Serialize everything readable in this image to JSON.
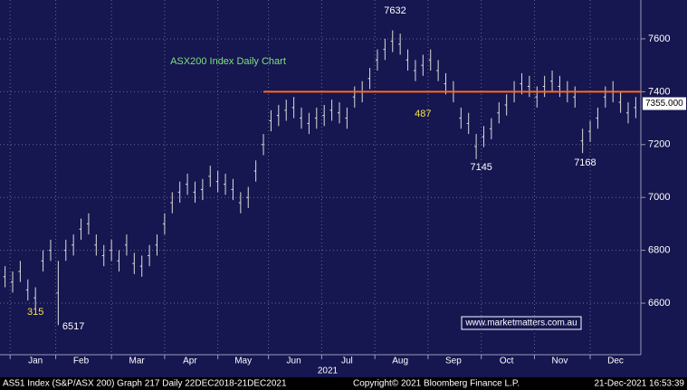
{
  "chart_data": {
    "type": "range",
    "title": "ASX200 Index Daily Chart",
    "website": "www.marketmatters.com.au",
    "year_label": "2021",
    "footer": {
      "left": "AS51 Index (S&P/ASX 200) Graph 217  Daily 22DEC2018-21DEC2021",
      "center": "Copyright© 2021 Bloomberg Finance L.P.",
      "right": "21-Dec-2021 16:53:39"
    },
    "x": [
      2,
      5,
      8,
      11,
      14,
      17,
      20,
      23,
      26,
      29,
      32,
      35,
      38,
      41,
      44,
      47,
      50,
      53,
      56,
      59,
      62,
      65,
      68,
      71,
      74,
      77,
      80,
      83,
      86,
      89,
      92,
      95,
      98,
      101,
      104,
      107,
      110,
      113,
      116,
      119,
      122,
      125,
      128,
      131,
      134,
      137,
      140,
      143,
      146,
      149,
      152,
      155,
      158,
      161,
      164,
      167,
      170,
      173,
      176,
      179,
      182,
      185,
      188,
      191,
      194,
      197,
      200,
      203,
      206,
      209,
      212,
      215,
      218,
      221,
      224,
      227,
      230,
      233,
      236,
      239,
      242,
      245,
      248,
      251
    ],
    "highs": [
      6740,
      6720,
      6760,
      6690,
      6660,
      6800,
      6840,
      6760,
      6840,
      6860,
      6920,
      6940,
      6860,
      6820,
      6840,
      6800,
      6860,
      6790,
      6780,
      6820,
      6860,
      6940,
      7020,
      7060,
      7090,
      7060,
      7070,
      7120,
      7100,
      7090,
      7070,
      7020,
      7040,
      7140,
      7240,
      7330,
      7350,
      7370,
      7380,
      7340,
      7320,
      7340,
      7350,
      7370,
      7360,
      7340,
      7420,
      7440,
      7490,
      7560,
      7600,
      7632,
      7620,
      7560,
      7520,
      7540,
      7560,
      7520,
      7470,
      7440,
      7340,
      7320,
      7240,
      7270,
      7300,
      7360,
      7390,
      7440,
      7470,
      7460,
      7420,
      7460,
      7480,
      7460,
      7440,
      7420,
      7260,
      7290,
      7340,
      7420,
      7440,
      7400,
      7360,
      7380
    ],
    "lows": [
      6660,
      6640,
      6680,
      6610,
      6580,
      6720,
      6760,
      6517,
      6760,
      6780,
      6840,
      6860,
      6780,
      6740,
      6760,
      6720,
      6780,
      6710,
      6700,
      6740,
      6780,
      6860,
      6940,
      6980,
      7010,
      6980,
      6990,
      7040,
      7020,
      7010,
      6990,
      6940,
      6960,
      7060,
      7160,
      7250,
      7270,
      7290,
      7300,
      7260,
      7240,
      7260,
      7270,
      7290,
      7280,
      7260,
      7340,
      7360,
      7410,
      7480,
      7520,
      7550,
      7540,
      7480,
      7440,
      7460,
      7480,
      7440,
      7390,
      7360,
      7260,
      7240,
      7145,
      7190,
      7220,
      7280,
      7310,
      7360,
      7390,
      7380,
      7340,
      7380,
      7400,
      7380,
      7360,
      7340,
      7168,
      7210,
      7260,
      7340,
      7360,
      7320,
      7280,
      7300
    ],
    "color": "#dcdcdc",
    "xlim": [
      0,
      253
    ],
    "xticks": [
      {
        "value": 4,
        "label": "Jan"
      },
      {
        "value": 22,
        "label": "Feb"
      },
      {
        "value": 44,
        "label": "Mar"
      },
      {
        "value": 65,
        "label": "Apr"
      },
      {
        "value": 86,
        "label": "May"
      },
      {
        "value": 106,
        "label": "Jun"
      },
      {
        "value": 127,
        "label": "Jul"
      },
      {
        "value": 148,
        "label": "Aug"
      },
      {
        "value": 169,
        "label": "Sep"
      },
      {
        "value": 190,
        "label": "Oct"
      },
      {
        "value": 211,
        "label": "Nov"
      },
      {
        "value": 233,
        "label": "Dec"
      }
    ],
    "ylim": [
      6405,
      7747
    ],
    "yticks": [
      6600,
      6800,
      7000,
      7200,
      7400,
      7600
    ],
    "grid": true,
    "hline": {
      "value": 7400,
      "from": 104,
      "color": "#ff6a1a"
    },
    "last_price": {
      "value": 7355,
      "label": "7355.000"
    },
    "annotations": [
      {
        "label": "7632",
        "x": 156,
        "y": 7706,
        "color": "#ffffff"
      },
      {
        "label": "6517",
        "x": 29,
        "y": 6511,
        "color": "#ffffff"
      },
      {
        "label": "7145",
        "x": 190,
        "y": 7114,
        "color": "#ffffff"
      },
      {
        "label": "7168",
        "x": 231,
        "y": 7131,
        "color": "#ffffff"
      },
      {
        "label": "315",
        "x": 14,
        "y": 6566,
        "color": "#f2e34a"
      },
      {
        "label": "487",
        "x": 167,
        "y": 7316,
        "color": "#f2e34a"
      }
    ]
  }
}
